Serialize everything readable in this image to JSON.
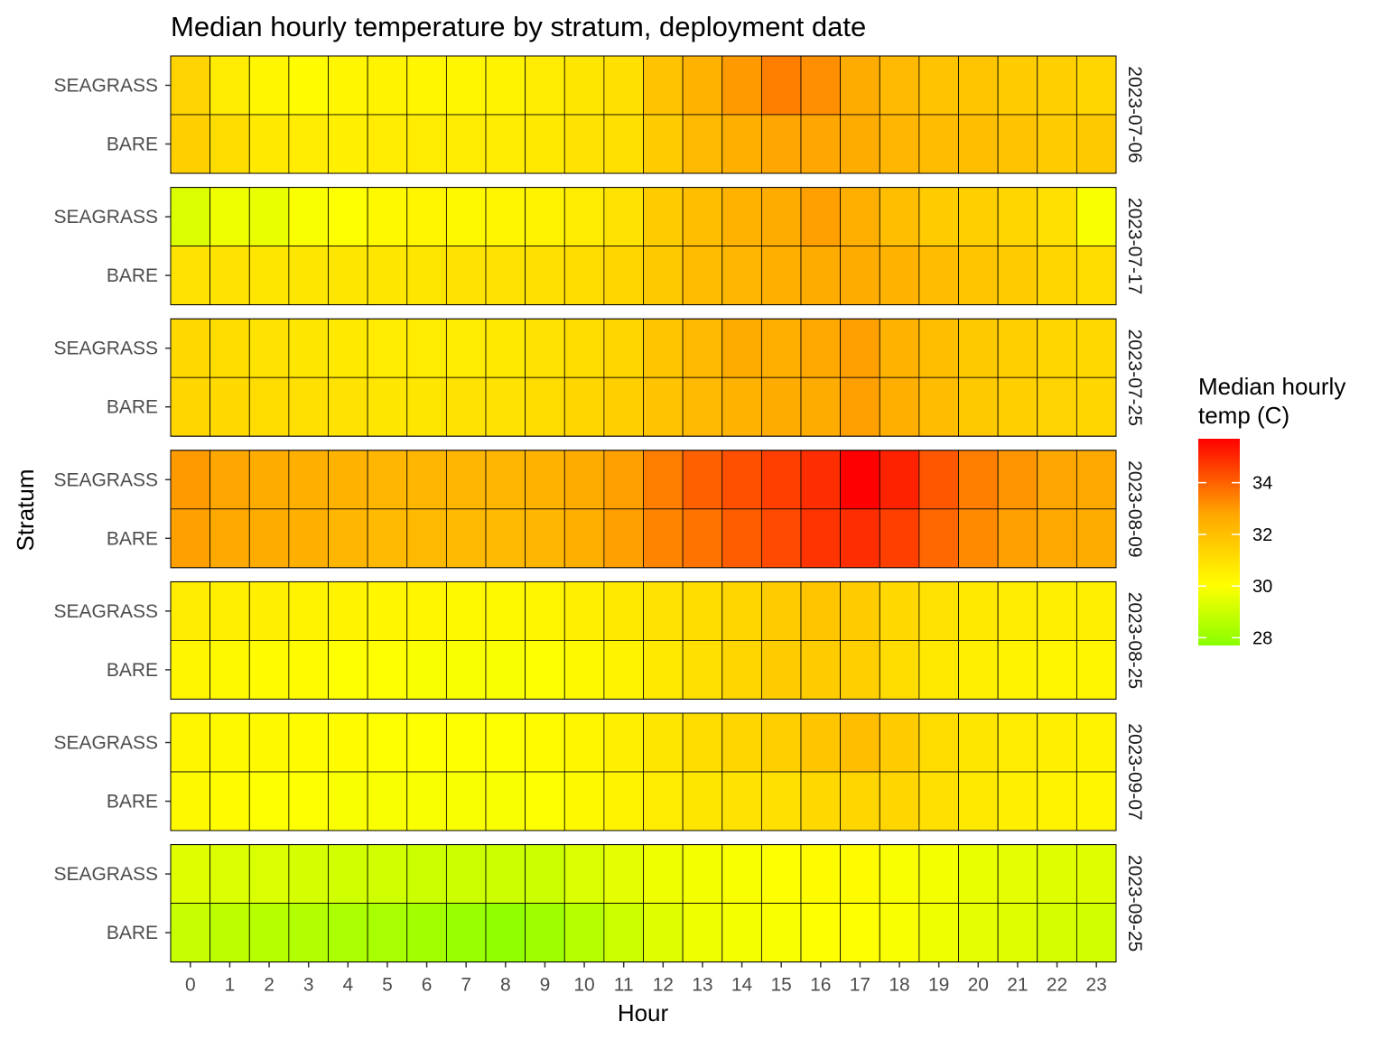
{
  "chart_data": {
    "type": "heatmap",
    "title": "Median hourly temperature by stratum, deployment date",
    "xlabel": "Hour",
    "ylabel": "Stratum",
    "hours": [
      0,
      1,
      2,
      3,
      4,
      5,
      6,
      7,
      8,
      9,
      10,
      11,
      12,
      13,
      14,
      15,
      16,
      17,
      18,
      19,
      20,
      21,
      22,
      23
    ],
    "strata": [
      "SEAGRASS",
      "BARE"
    ],
    "legend": {
      "title_lines": [
        "Median hourly",
        "temp (C)"
      ],
      "ticks": [
        28,
        30,
        32,
        34
      ],
      "min": 27.7,
      "max": 35.7,
      "colors": [
        "#88ff00",
        "#ffff00",
        "#ffa500",
        "#ff0000"
      ],
      "placement": "right"
    },
    "panels": [
      {
        "date": "2023-07-06",
        "values": {
          "SEAGRASS": [
            31.4,
            30.6,
            30.3,
            30.1,
            30.3,
            30.4,
            30.3,
            30.3,
            30.4,
            30.6,
            30.8,
            31.0,
            31.9,
            32.4,
            33.0,
            33.5,
            33.2,
            32.6,
            32.2,
            31.9,
            31.8,
            31.6,
            31.5,
            31.3
          ],
          "BARE": [
            31.5,
            31.1,
            30.7,
            30.6,
            30.5,
            30.6,
            30.6,
            30.6,
            30.6,
            30.7,
            30.9,
            31.0,
            31.6,
            32.2,
            32.5,
            32.8,
            32.8,
            32.6,
            32.3,
            32.1,
            32.0,
            31.9,
            31.6,
            31.7
          ]
        }
      },
      {
        "date": "2023-07-17",
        "values": {
          "SEAGRASS": [
            29.3,
            29.7,
            29.6,
            29.9,
            30.0,
            30.2,
            30.3,
            30.2,
            30.3,
            30.4,
            30.6,
            30.9,
            31.6,
            32.0,
            32.4,
            32.6,
            32.9,
            32.5,
            32.0,
            31.6,
            31.5,
            31.3,
            31.0,
            29.9
          ],
          "BARE": [
            30.9,
            30.9,
            30.8,
            30.8,
            30.8,
            30.8,
            30.8,
            30.9,
            30.9,
            31.0,
            31.1,
            31.3,
            31.7,
            32.1,
            32.3,
            32.5,
            32.6,
            32.6,
            32.4,
            32.1,
            31.8,
            31.6,
            31.3,
            31.1
          ]
        }
      },
      {
        "date": "2023-07-25",
        "values": {
          "SEAGRASS": [
            31.2,
            31.1,
            30.9,
            30.8,
            30.7,
            30.6,
            30.6,
            30.6,
            30.7,
            30.9,
            31.1,
            31.3,
            31.8,
            32.2,
            32.6,
            32.5,
            32.7,
            32.9,
            32.4,
            32.0,
            31.7,
            31.5,
            31.3,
            31.2
          ],
          "BARE": [
            31.3,
            31.2,
            31.1,
            31.0,
            30.9,
            30.8,
            30.8,
            30.9,
            30.9,
            31.1,
            31.3,
            31.5,
            31.9,
            32.2,
            32.4,
            32.6,
            32.6,
            32.9,
            32.5,
            32.1,
            31.7,
            31.5,
            31.4,
            31.3
          ]
        }
      },
      {
        "date": "2023-08-09",
        "values": {
          "SEAGRASS": [
            33.0,
            32.8,
            32.6,
            32.5,
            32.4,
            32.3,
            32.3,
            32.3,
            32.3,
            32.4,
            32.6,
            32.9,
            33.5,
            34.0,
            34.3,
            34.6,
            34.9,
            35.7,
            35.1,
            34.2,
            33.5,
            33.1,
            32.8,
            32.7
          ],
          "BARE": [
            32.9,
            32.7,
            32.6,
            32.5,
            32.3,
            32.2,
            32.2,
            32.2,
            32.2,
            32.3,
            32.5,
            32.9,
            33.4,
            33.7,
            34.1,
            34.4,
            34.8,
            34.9,
            34.6,
            33.9,
            33.3,
            32.9,
            32.7,
            32.6
          ]
        }
      },
      {
        "date": "2023-08-25",
        "values": {
          "SEAGRASS": [
            30.6,
            30.5,
            30.5,
            30.4,
            30.4,
            30.3,
            30.3,
            30.2,
            30.2,
            30.3,
            30.5,
            30.7,
            30.9,
            31.1,
            31.3,
            31.6,
            31.8,
            31.6,
            31.2,
            30.9,
            30.7,
            30.6,
            30.5,
            30.5
          ],
          "BARE": [
            30.3,
            30.2,
            30.1,
            30.1,
            30.0,
            30.0,
            29.9,
            29.9,
            29.9,
            30.0,
            30.2,
            30.4,
            30.7,
            31.0,
            31.3,
            31.6,
            31.6,
            31.5,
            31.1,
            30.7,
            30.5,
            30.4,
            30.3,
            30.3
          ]
        }
      },
      {
        "date": "2023-09-07",
        "values": {
          "SEAGRASS": [
            30.3,
            30.2,
            30.2,
            30.1,
            30.1,
            30.0,
            30.0,
            30.0,
            30.0,
            30.1,
            30.3,
            30.5,
            30.8,
            31.1,
            31.3,
            31.5,
            31.8,
            32.0,
            31.6,
            31.1,
            30.8,
            30.6,
            30.5,
            30.4
          ],
          "BARE": [
            30.2,
            30.1,
            30.0,
            30.0,
            29.9,
            29.9,
            29.9,
            29.9,
            29.9,
            30.0,
            30.2,
            30.4,
            30.6,
            30.8,
            30.9,
            31.0,
            31.2,
            31.3,
            31.3,
            31.0,
            30.7,
            30.5,
            30.4,
            30.3
          ]
        }
      },
      {
        "date": "2023-09-25",
        "values": {
          "SEAGRASS": [
            29.4,
            29.3,
            29.3,
            29.2,
            29.1,
            29.1,
            29.0,
            29.0,
            29.0,
            29.0,
            29.3,
            29.5,
            29.7,
            29.8,
            29.9,
            30.0,
            30.1,
            30.1,
            29.9,
            29.8,
            29.6,
            29.5,
            29.4,
            29.4
          ],
          "BARE": [
            28.9,
            28.7,
            28.6,
            28.5,
            28.4,
            28.3,
            28.2,
            28.0,
            27.9,
            28.1,
            28.6,
            29.0,
            29.4,
            29.7,
            29.8,
            29.9,
            30.0,
            30.0,
            29.9,
            29.7,
            29.5,
            29.4,
            29.2,
            29.1
          ]
        }
      }
    ]
  }
}
